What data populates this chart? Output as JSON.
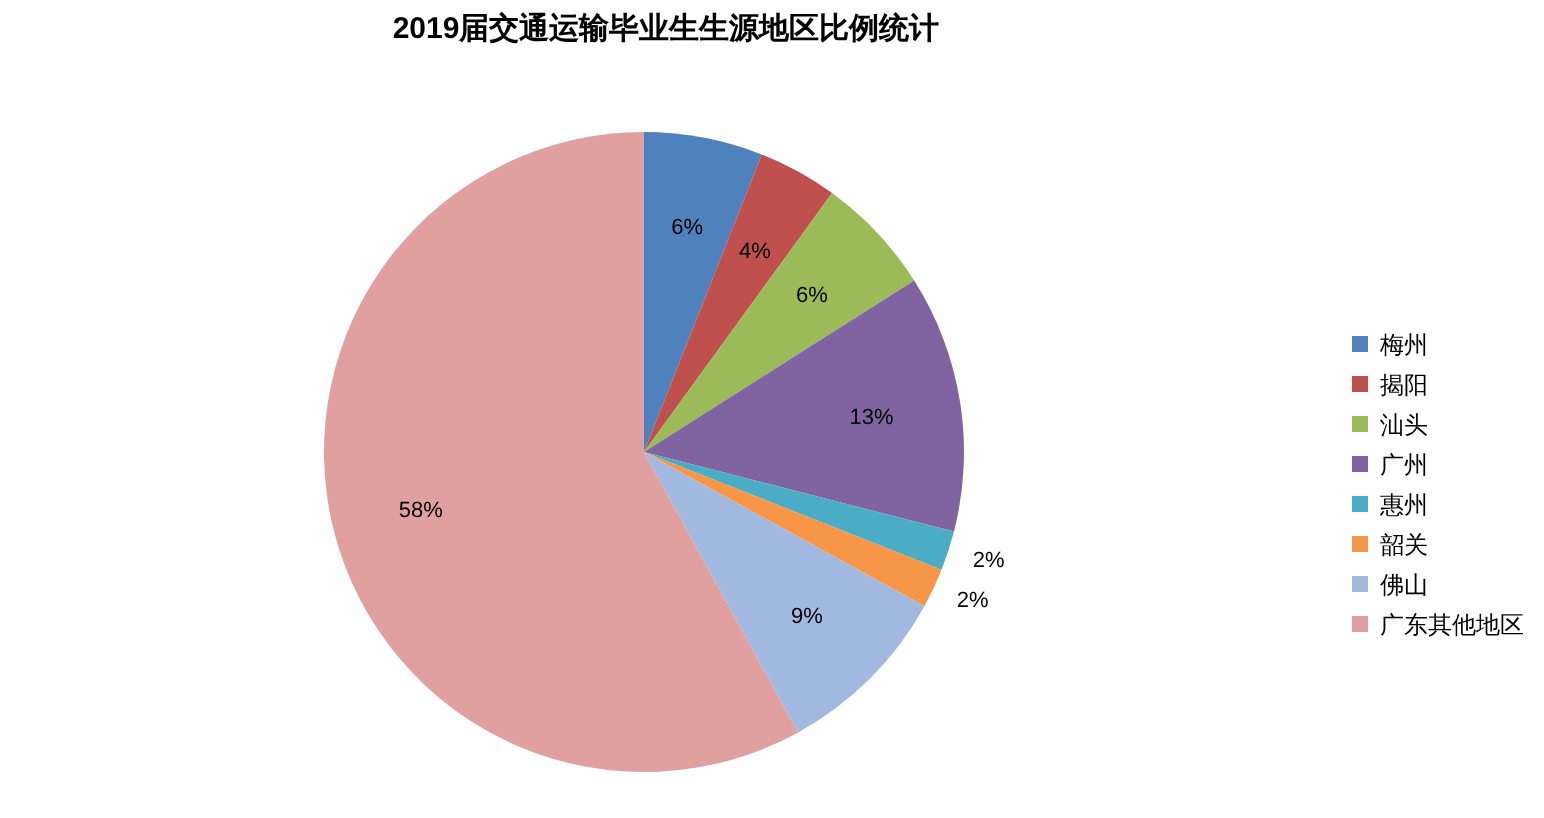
{
  "chart_data": {
    "type": "pie",
    "title": "2019届交通运输毕业生生源地区比例统计",
    "categories": [
      "梅州",
      "揭阳",
      "汕头",
      "广州",
      "惠州",
      "韶关",
      "佛山",
      "广东其他地区"
    ],
    "values": [
      6,
      4,
      6,
      13,
      2,
      2,
      9,
      58
    ],
    "colors": [
      "#4f81bd",
      "#c0504d",
      "#9bbb59",
      "#8064a2",
      "#4bacc6",
      "#f79646",
      "#a2b9df",
      "#dfa09f"
    ],
    "value_labels": [
      "6%",
      "4%",
      "6%",
      "13%",
      "2%",
      "2%",
      "9%",
      "58%"
    ],
    "legend": "right"
  }
}
